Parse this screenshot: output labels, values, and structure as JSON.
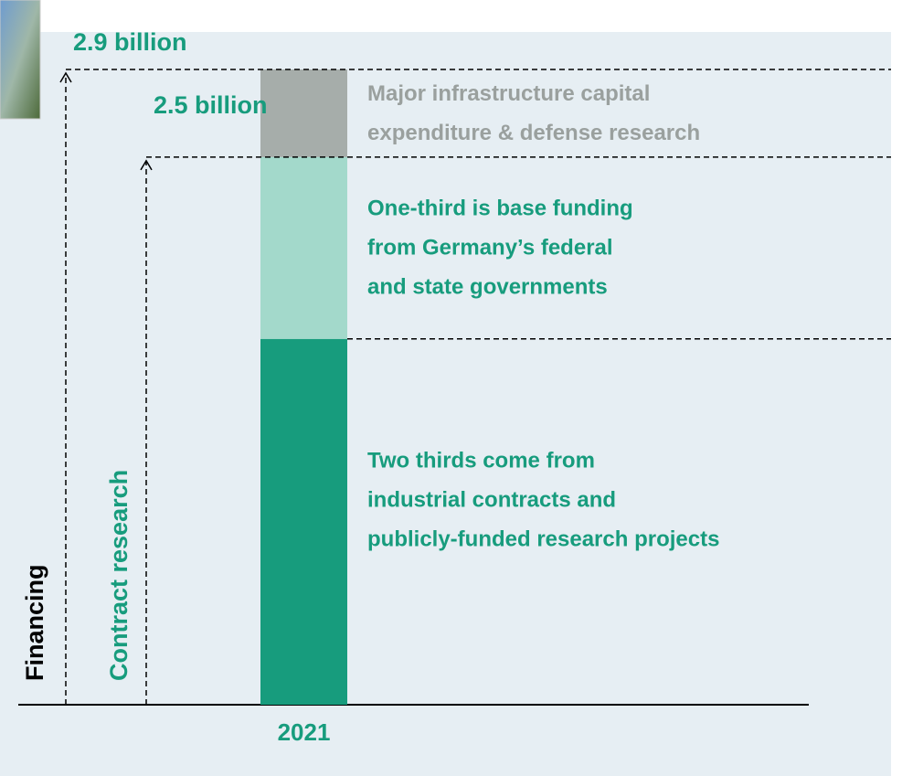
{
  "chart_data": {
    "type": "stacked_bar",
    "categories": [
      "2021"
    ],
    "series": [
      {
        "name": "Two thirds come from\nindustrial contracts and\npublicly-funded research projects",
        "color": "#179c7d",
        "label_color": "#179c7d",
        "values": [
          1.67
        ]
      },
      {
        "name": "One-third is base funding\nfrom Germany’s federal\nand state governments",
        "color": "#a3d9cb",
        "label_color": "#179c7d",
        "values": [
          0.83
        ]
      },
      {
        "name": "Major infrastructure capital\nexpenditure & defense research",
        "color": "#a6adaa",
        "label_color": "#9aa09e",
        "values": [
          0.4
        ]
      }
    ],
    "ylim": [
      0,
      2.9
    ],
    "annotations": [
      {
        "text": "2.9 billion",
        "value": 2.9,
        "axis_label": "Financing",
        "color": "#000000"
      },
      {
        "text": "2.5 billion",
        "value": 2.5,
        "axis_label": "Contract research",
        "color": "#179c7d"
      }
    ]
  }
}
